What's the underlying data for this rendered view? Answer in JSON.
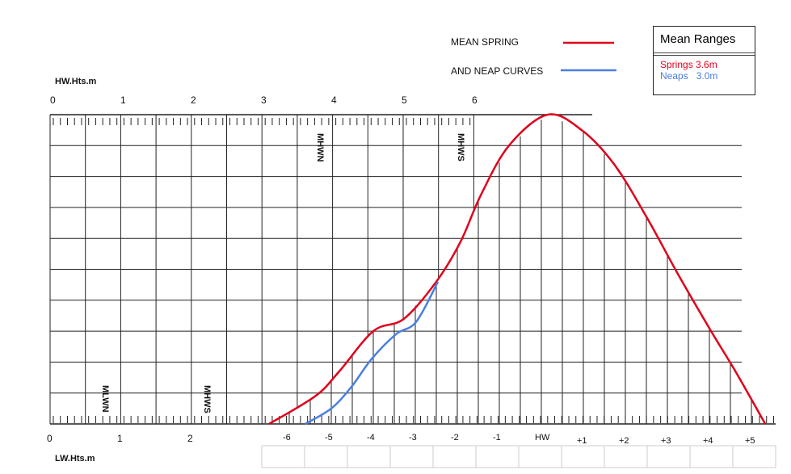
{
  "legend": {
    "spring_label": "MEAN SPRING",
    "neap_label": "AND NEAP CURVES"
  },
  "ranges": {
    "title": "Mean Ranges",
    "springs": "Springs 3.6m",
    "neaps": "Neaps   3.0m"
  },
  "colors": {
    "spring": "#e0001b",
    "neap": "#4a7fe0",
    "grid": "#222222"
  },
  "hw_axis": {
    "label": "HW.Hts.m",
    "ticks": [
      "0",
      "1",
      "2",
      "3",
      "4",
      "5",
      "6"
    ]
  },
  "lw_axis": {
    "label": "LW.Hts.m",
    "ticks": [
      "0",
      "1",
      "2"
    ]
  },
  "time_axis": {
    "ticks": [
      "-6",
      "-5",
      "-4",
      "-3",
      "-2",
      "-1",
      "HW",
      "+1",
      "+2",
      "+3",
      "+4",
      "+5"
    ]
  },
  "markers": {
    "top": [
      "MHWN",
      "MHWS"
    ],
    "bottom": [
      "MLWN",
      "MHWS"
    ]
  },
  "curves": {
    "spring": [
      [
        -6.48,
        0
      ],
      [
        -5.38,
        0.09
      ],
      [
        -4.81,
        0.17
      ],
      [
        -4.0,
        0.3
      ],
      [
        -3.27,
        0.34
      ],
      [
        -2.5,
        0.46
      ],
      [
        -1.92,
        0.59
      ],
      [
        -1.44,
        0.74
      ],
      [
        -0.77,
        0.9
      ],
      [
        0.15,
        1.0
      ],
      [
        0.96,
        0.95
      ],
      [
        1.73,
        0.84
      ],
      [
        2.5,
        0.67
      ],
      [
        3.27,
        0.48
      ],
      [
        4.04,
        0.3
      ],
      [
        4.62,
        0.17
      ],
      [
        5.33,
        0
      ]
    ],
    "neap": [
      [
        -5.62,
        0
      ],
      [
        -5.0,
        0.05
      ],
      [
        -4.52,
        0.12
      ],
      [
        -4.04,
        0.21
      ],
      [
        -3.46,
        0.29
      ],
      [
        -2.98,
        0.33
      ],
      [
        -2.46,
        0.46
      ]
    ]
  }
}
